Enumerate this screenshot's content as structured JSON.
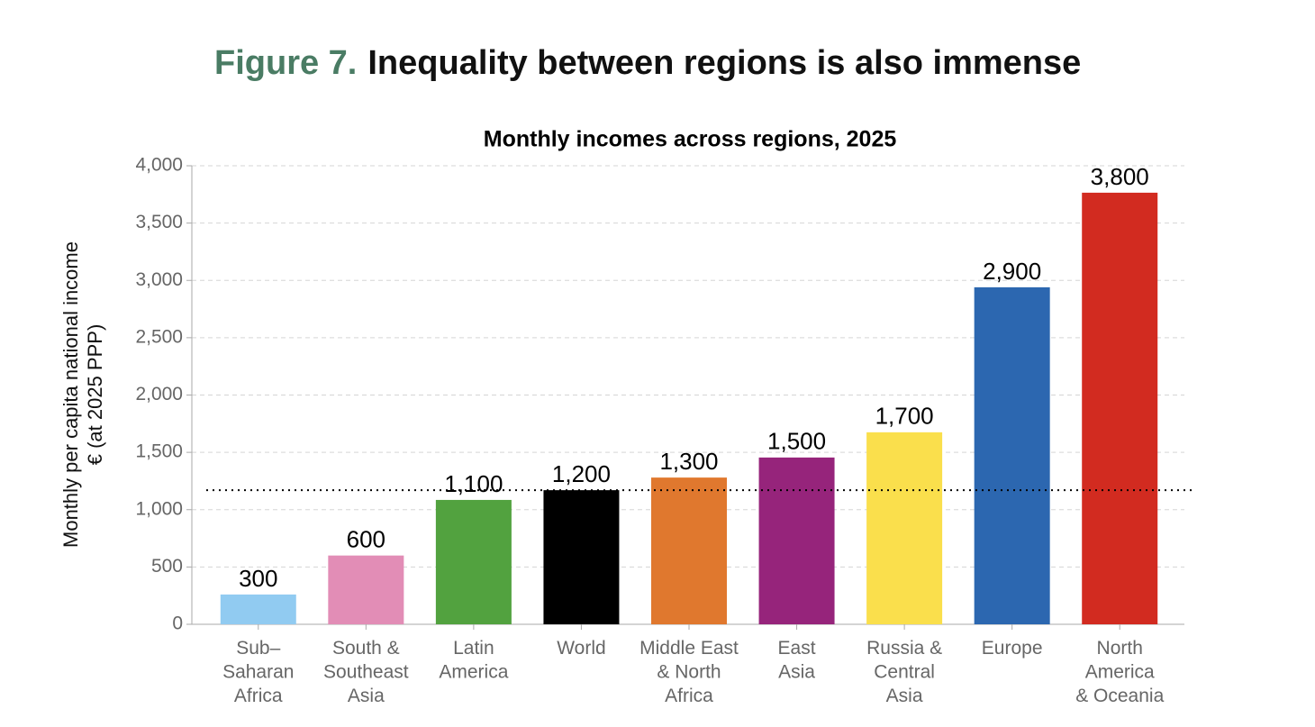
{
  "header": {
    "figure_label": "Figure 7.",
    "heading": "Inequality between regions is also immense"
  },
  "chart_data": {
    "type": "bar",
    "title": "Monthly incomes across regions, 2025",
    "ylabel": [
      "Monthly per capita national income",
      "€ (at 2025 PPP)"
    ],
    "categories": [
      "Sub–\nSaharan\nAfrica",
      "South &\nSoutheast\nAsia",
      "Latin\nAmerica",
      "World",
      "Middle East\n& North\nAfrica",
      "East\nAsia",
      "Russia &\nCentral\nAsia",
      "Europe",
      "North\nAmerica\n& Oceania"
    ],
    "values": [
      260,
      600,
      1085,
      1170,
      1280,
      1455,
      1675,
      2940,
      3765
    ],
    "value_labels": [
      "300",
      "600",
      "1,100",
      "1,200",
      "1,300",
      "1,500",
      "1,700",
      "2,900",
      "3,800"
    ],
    "colors": [
      "#91cbf1",
      "#e28db6",
      "#52a23f",
      "#000000",
      "#e0782e",
      "#96247b",
      "#fadf4c",
      "#2c67b0",
      "#d22b20"
    ],
    "reference_line": "World",
    "ylim": [
      0,
      4000
    ],
    "yticks": [
      0,
      500,
      {
        "value": 1000,
        "label": "1,000"
      },
      {
        "value": 1500,
        "label": "1,500"
      },
      {
        "value": 2000,
        "label": "2,000"
      },
      {
        "value": 2500,
        "label": "2,500"
      },
      {
        "value": 3000,
        "label": "3,000"
      },
      {
        "value": 3500,
        "label": "3,500"
      },
      {
        "value": 4000,
        "label": "4,000"
      }
    ],
    "grid": true
  }
}
